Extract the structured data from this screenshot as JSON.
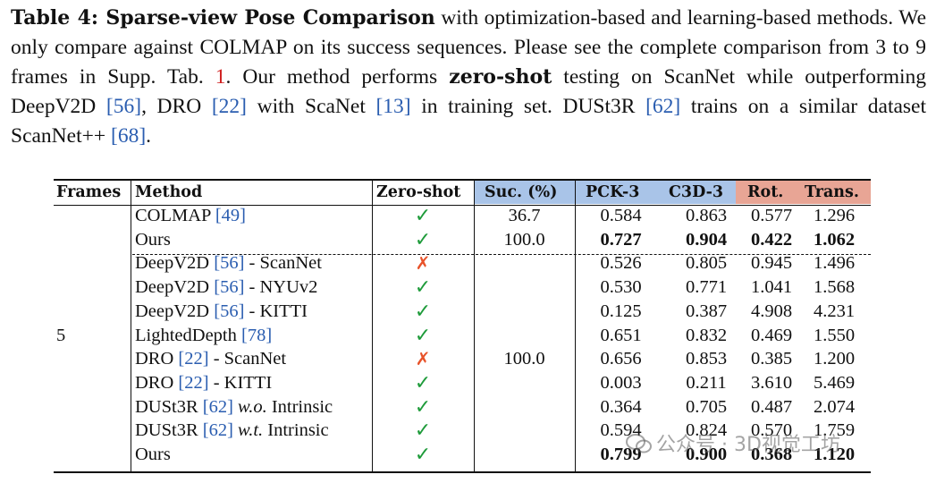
{
  "caption": {
    "label": "Table 4: Sparse-view Pose Comparison",
    "t1": " with optimization-based and learning-based methods. We only compare against COLMAP on its success sequences. Please see the complete comparison from 3 to 9 frames in Supp. Tab. ",
    "supp_ref": "1",
    "t2": ". Our method performs ",
    "bold2": "zero-shot",
    "t3": " testing on ScanNet while outperforming DeepV2D ",
    "ref_deepv2d": "[56]",
    "t4": ", DRO ",
    "ref_dro": "[22]",
    "t5": " with ScaNet ",
    "ref_scannet": "[13]",
    "t6": " in training set. DUSt3R ",
    "ref_dust3r": "[62]",
    "t7": " trains on a similar dataset ScanNet++ ",
    "ref_scannetpp": "[68]",
    "t8": "."
  },
  "table": {
    "headers": [
      "Frames",
      "Method",
      "Zero-shot",
      "Suc. (%)",
      "PCK-3",
      "C3D-3",
      "Rot.",
      "Trans."
    ],
    "header_colors": {
      "blue": "#a9c4e8",
      "red": "#e8a595"
    },
    "frames": "5",
    "suc_group1_colmap": "36.7",
    "suc_group1_ours": "100.0",
    "suc_group2": "100.0",
    "rows": [
      {
        "m1": "COLMAP ",
        "ref": "[49]",
        "m2": "",
        "m2i": "",
        "m3": "",
        "zs": "check",
        "pck": "0.584",
        "c3d": "0.863",
        "rot": "0.577",
        "trans": "1.296",
        "bold": false
      },
      {
        "m1": "Ours",
        "ref": "",
        "m2": "",
        "m2i": "",
        "m3": "",
        "zs": "check",
        "pck": "0.727",
        "c3d": "0.904",
        "rot": "0.422",
        "trans": "1.062",
        "bold": true
      },
      {
        "m1": "DeepV2D ",
        "ref": "[56]",
        "m2": " - ScanNet",
        "m2i": "",
        "m3": "",
        "zs": "cross",
        "pck": "0.526",
        "c3d": "0.805",
        "rot": "0.945",
        "trans": "1.496",
        "bold": false
      },
      {
        "m1": "DeepV2D ",
        "ref": "[56]",
        "m2": " - NYUv2",
        "m2i": "",
        "m3": "",
        "zs": "check",
        "pck": "0.530",
        "c3d": "0.771",
        "rot": "1.041",
        "trans": "1.568",
        "bold": false
      },
      {
        "m1": "DeepV2D ",
        "ref": "[56]",
        "m2": " - KITTI",
        "m2i": "",
        "m3": "",
        "zs": "check",
        "pck": "0.125",
        "c3d": "0.387",
        "rot": "4.908",
        "trans": "4.231",
        "bold": false
      },
      {
        "m1": "LightedDepth ",
        "ref": "[78]",
        "m2": "",
        "m2i": "",
        "m3": "",
        "zs": "check",
        "pck": "0.651",
        "c3d": "0.832",
        "rot": "0.469",
        "trans": "1.550",
        "bold": false
      },
      {
        "m1": "DRO ",
        "ref": "[22]",
        "m2": " - ScanNet",
        "m2i": "",
        "m3": "",
        "zs": "cross",
        "pck": "0.656",
        "c3d": "0.853",
        "rot": "0.385",
        "trans": "1.200",
        "bold": false
      },
      {
        "m1": "DRO ",
        "ref": "[22]",
        "m2": " - KITTI",
        "m2i": "",
        "m3": "",
        "zs": "check",
        "pck": "0.003",
        "c3d": "0.211",
        "rot": "3.610",
        "trans": "5.469",
        "bold": false
      },
      {
        "m1": "DUSt3R ",
        "ref": "[62]",
        "m2": " ",
        "m2i": "w.o.",
        "m3": " Intrinsic",
        "zs": "check",
        "pck": "0.364",
        "c3d": "0.705",
        "rot": "0.487",
        "trans": "2.074",
        "bold": false
      },
      {
        "m1": "DUSt3R ",
        "ref": "[62]",
        "m2": " ",
        "m2i": "w.t.",
        "m3": " Intrinsic",
        "zs": "check",
        "pck": "0.594",
        "c3d": "0.824",
        "rot": "0.570",
        "trans": "1.759",
        "bold": false
      },
      {
        "m1": "Ours",
        "ref": "",
        "m2": "",
        "m2i": "",
        "m3": "",
        "zs": "check",
        "pck": "0.799",
        "c3d": "0.900",
        "rot": "0.368",
        "trans": "1.120",
        "bold": true
      }
    ],
    "check_glyph": "✓",
    "cross_glyph": "✗"
  },
  "watermark": "公众号 · 3D视觉工坊"
}
